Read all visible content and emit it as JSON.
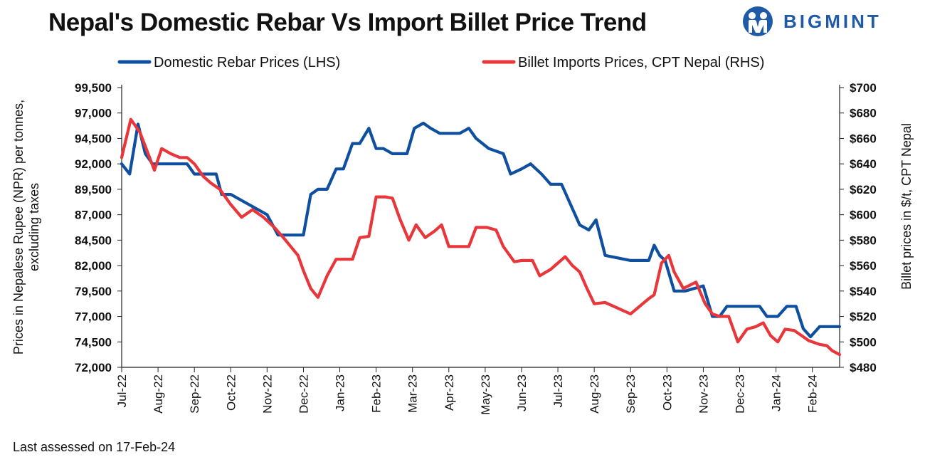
{
  "title": "Nepal's Domestic Rebar Vs Import Billet Price Trend",
  "brand": {
    "name": "BIGMINT",
    "color": "#1f5aa6",
    "icon": "bigmint-logo-icon"
  },
  "footer": "Last assessed on 17-Feb-24",
  "chart_data": {
    "type": "line",
    "title": "Nepal's Domestic Rebar Vs Import Billet Price Trend",
    "xlabel": "",
    "ylabel_left": "Prices in Nepalese Rupee (NPR) per tonnes, excluding taxes",
    "ylabel_left_lines": [
      "Prices in Nepalese Rupee (NPR) per tonnes,",
      "excluding taxes"
    ],
    "ylabel_right": "Billet prices in $/t, CPT Nepal",
    "categories": [
      "Jul-22",
      "Aug-22",
      "Sep-22",
      "Oct-22",
      "Nov-22",
      "Dec-22",
      "Jan-23",
      "Feb-23",
      "Mar-23",
      "Apr-23",
      "May-23",
      "Jun-23",
      "Jul-23",
      "Aug-23",
      "Sep-23",
      "Oct-23",
      "Nov-23",
      "Dec-23",
      "Jan-24",
      "Feb-24"
    ],
    "x_range": [
      0,
      19.75
    ],
    "ylim_left": [
      72000,
      99500
    ],
    "yticks_left": [
      "72,000",
      "74,500",
      "77,000",
      "79,500",
      "82,000",
      "84,500",
      "87,000",
      "89,500",
      "92,000",
      "94,500",
      "97,000",
      "99,500"
    ],
    "ylim_right": [
      480,
      700
    ],
    "yticks_right": [
      "$480",
      "$500",
      "$520",
      "$540",
      "$560",
      "$580",
      "$600",
      "$620",
      "$640",
      "$660",
      "$680",
      "$700"
    ],
    "legend_position": "top",
    "grid": false,
    "series": [
      {
        "name": "Domestic Rebar Prices (LHS)",
        "axis": "left",
        "color": "#0f4fa0",
        "x": [
          0,
          0.22,
          0.45,
          0.65,
          0.85,
          1,
          1.3,
          1.6,
          1.8,
          2,
          2.3,
          2.6,
          2.75,
          3,
          3.5,
          4,
          4.3,
          4.6,
          5,
          5.2,
          5.4,
          5.65,
          5.9,
          6.1,
          6.35,
          6.55,
          6.8,
          7,
          7.2,
          7.45,
          7.65,
          7.85,
          8.05,
          8.3,
          8.5,
          8.75,
          9,
          9.3,
          9.55,
          9.75,
          10.1,
          10.5,
          10.7,
          11,
          11.25,
          11.55,
          11.8,
          11.95,
          12.1,
          12.35,
          12.6,
          12.85,
          13.05,
          13.3,
          14,
          14.5,
          14.65,
          14.8,
          14.95,
          15.2,
          15.5,
          15.8,
          16,
          16.25,
          16.45,
          16.65,
          16.95,
          17.2,
          17.35,
          17.55,
          17.75,
          18.05,
          18.3,
          18.55,
          18.75,
          18.95,
          19.2,
          19.45,
          19.75
        ],
        "y": [
          92000,
          91000,
          95900,
          93000,
          92000,
          92000,
          92000,
          92000,
          92000,
          91000,
          91000,
          91000,
          89000,
          89000,
          88000,
          87000,
          85000,
          85000,
          85000,
          89000,
          89500,
          89500,
          91500,
          91500,
          94000,
          94000,
          95500,
          93500,
          93500,
          93000,
          93000,
          93000,
          95500,
          96000,
          95500,
          95000,
          95000,
          95000,
          95500,
          94500,
          93500,
          93000,
          91000,
          91500,
          92000,
          91000,
          90000,
          90000,
          90000,
          88000,
          86000,
          85500,
          86500,
          83000,
          82500,
          82500,
          84000,
          83000,
          82500,
          79500,
          79500,
          79800,
          80000,
          77000,
          77000,
          78000,
          78000,
          78000,
          78000,
          78000,
          77000,
          77000,
          78000,
          78000,
          75800,
          75000,
          76000,
          76000,
          76000
        ]
      },
      {
        "name": "Billet Imports Prices, CPT Nepal (RHS)",
        "axis": "right",
        "color": "#e8363b",
        "x": [
          0,
          0.25,
          0.5,
          0.7,
          0.9,
          1.1,
          1.35,
          1.6,
          1.8,
          2,
          2.25,
          2.45,
          2.7,
          3,
          3.3,
          3.6,
          3.9,
          4.2,
          4.45,
          4.65,
          4.85,
          5,
          5.2,
          5.4,
          5.65,
          5.9,
          6.15,
          6.35,
          6.55,
          6.8,
          7,
          7.25,
          7.45,
          7.65,
          7.9,
          8.1,
          8.35,
          8.6,
          8.8,
          9,
          9.3,
          9.55,
          9.75,
          10.05,
          10.3,
          10.5,
          10.8,
          11,
          11.3,
          11.5,
          11.8,
          12,
          12.2,
          12.4,
          12.6,
          12.8,
          13,
          13.3,
          14,
          14.5,
          14.65,
          14.85,
          15.05,
          15.2,
          15.45,
          15.8,
          16.05,
          16.25,
          16.45,
          16.7,
          16.95,
          17.2,
          17.45,
          17.65,
          17.85,
          18.05,
          18.25,
          18.5,
          18.7,
          18.9,
          19.2,
          19.4,
          19.55,
          19.75
        ],
        "y": [
          645,
          675,
          665,
          650,
          635,
          652,
          648,
          645,
          645,
          640,
          630,
          625,
          620,
          608,
          598,
          604,
          598,
          590,
          582,
          575,
          568,
          556,
          542,
          535,
          552,
          565,
          565,
          565,
          582,
          583,
          614,
          614,
          613,
          597,
          580,
          592,
          582,
          587,
          592,
          575,
          575,
          575,
          590,
          590,
          588,
          575,
          563,
          564,
          564,
          552,
          557,
          562,
          567,
          560,
          555,
          542,
          530,
          531,
          522,
          534,
          537,
          562,
          568,
          555,
          542,
          547,
          530,
          522,
          520,
          520,
          500,
          510,
          512,
          515,
          505,
          500,
          510,
          509,
          505,
          501,
          498,
          497,
          493,
          490
        ]
      }
    ]
  }
}
